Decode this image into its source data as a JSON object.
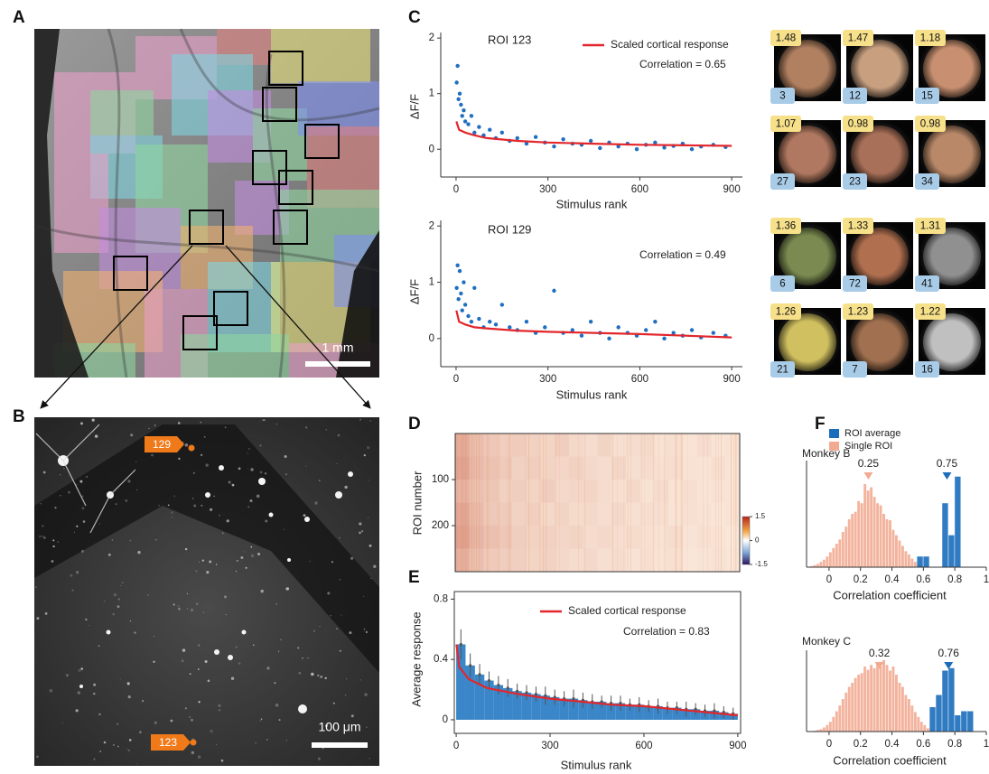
{
  "panel_labels": [
    "A",
    "B",
    "C",
    "D",
    "E",
    "F"
  ],
  "panel_a": {
    "scale_bar": "1 mm"
  },
  "panel_b": {
    "scale_bar": "100 μm",
    "roi_tags": [
      129,
      123
    ]
  },
  "face_grid": {
    "tiles": [
      {
        "response": 1.48,
        "rank": 3
      },
      {
        "response": 1.47,
        "rank": 12
      },
      {
        "response": 1.18,
        "rank": 15
      },
      {
        "response": 1.07,
        "rank": 27
      },
      {
        "response": 0.98,
        "rank": 23
      },
      {
        "response": 0.98,
        "rank": 34
      },
      {
        "response": 1.36,
        "rank": 6
      },
      {
        "response": 1.33,
        "rank": 72
      },
      {
        "response": 1.31,
        "rank": 41
      },
      {
        "response": 1.26,
        "rank": 21
      },
      {
        "response": 1.23,
        "rank": 7
      },
      {
        "response": 1.22,
        "rank": 16
      }
    ]
  },
  "chart_data": [
    {
      "type": "scatter",
      "annotation": "ROI 123",
      "correlation": "Correlation = 0.65",
      "xlabel": "Stimulus rank",
      "ylabel": "ΔF/F",
      "xlim": [
        -50,
        935
      ],
      "ylim": [
        -0.5,
        2.1
      ],
      "xticks": [
        0,
        300,
        600,
        900
      ],
      "yticks": [
        0,
        1,
        2
      ],
      "series": [
        {
          "style": "points",
          "color": "#1f6fc0",
          "x": [
            2,
            5,
            8,
            12,
            16,
            20,
            25,
            30,
            40,
            50,
            60,
            75,
            90,
            110,
            130,
            150,
            175,
            200,
            230,
            260,
            290,
            320,
            350,
            380,
            410,
            440,
            470,
            500,
            530,
            560,
            590,
            620,
            650,
            680,
            710,
            740,
            770,
            800,
            840,
            880
          ],
          "values": [
            1.2,
            1.5,
            0.9,
            1.0,
            0.8,
            0.6,
            0.7,
            0.5,
            0.45,
            0.6,
            0.3,
            0.4,
            0.25,
            0.35,
            0.2,
            0.3,
            0.15,
            0.2,
            0.1,
            0.22,
            0.12,
            0.05,
            0.18,
            0.1,
            0.08,
            0.15,
            0.02,
            0.12,
            0.05,
            0.1,
            0.0,
            0.08,
            0.12,
            0.03,
            0.06,
            0.1,
            0.0,
            0.05,
            0.08,
            0.04
          ]
        },
        {
          "name": "Scaled cortical response",
          "style": "line",
          "color": "#e3262b",
          "x": [
            1,
            10,
            30,
            60,
            100,
            200,
            300,
            450,
            600,
            750,
            900
          ],
          "values": [
            0.5,
            0.35,
            0.3,
            0.25,
            0.2,
            0.15,
            0.12,
            0.1,
            0.08,
            0.07,
            0.06
          ]
        }
      ]
    },
    {
      "type": "scatter",
      "annotation": "ROI 129",
      "correlation": "Correlation = 0.49",
      "xlabel": "Stimulus rank",
      "ylabel": "ΔF/F",
      "xlim": [
        -50,
        935
      ],
      "ylim": [
        -0.5,
        2.1
      ],
      "xticks": [
        0,
        300,
        600,
        900
      ],
      "yticks": [
        0,
        1,
        2
      ],
      "series": [
        {
          "style": "points",
          "color": "#1f6fc0",
          "x": [
            2,
            5,
            8,
            12,
            16,
            20,
            25,
            30,
            40,
            50,
            60,
            75,
            90,
            110,
            130,
            150,
            175,
            200,
            230,
            260,
            290,
            320,
            350,
            380,
            410,
            440,
            470,
            500,
            530,
            560,
            590,
            620,
            650,
            680,
            710,
            740,
            770,
            800,
            840,
            880
          ],
          "values": [
            0.9,
            1.3,
            0.7,
            1.2,
            0.8,
            0.5,
            1.0,
            0.6,
            0.4,
            0.3,
            0.9,
            0.35,
            0.2,
            0.3,
            0.25,
            0.6,
            0.2,
            0.15,
            0.3,
            0.1,
            0.2,
            0.85,
            0.1,
            0.15,
            0.05,
            0.3,
            0.1,
            0.0,
            0.2,
            0.1,
            0.05,
            0.15,
            0.3,
            0.0,
            0.1,
            0.05,
            0.15,
            0.02,
            0.1,
            0.05
          ]
        },
        {
          "style": "line",
          "color": "#e3262b",
          "x": [
            1,
            10,
            30,
            60,
            100,
            200,
            300,
            450,
            600,
            750,
            900
          ],
          "values": [
            0.5,
            0.3,
            0.25,
            0.2,
            0.18,
            0.14,
            0.12,
            0.1,
            0.08,
            0.05,
            0.02
          ]
        }
      ]
    },
    {
      "type": "heatmap",
      "ylabel": "ROI number",
      "xlim": [
        0,
        900
      ],
      "ylim": [
        0,
        300
      ],
      "y_inverted": true,
      "yticks": [
        100,
        200
      ],
      "zlim": [
        -1.5,
        1.5
      ],
      "colorbar_ticks": [
        1.5,
        0,
        -1.5
      ],
      "z": [
        [
          0.55,
          0.42,
          0.35,
          0.3,
          0.32,
          0.28,
          0.25,
          0.3,
          0.22,
          0.2,
          0.26,
          0.18,
          0.2,
          0.22,
          0.16,
          0.18,
          0.15,
          0.2,
          0.14,
          0.16
        ],
        [
          0.6,
          0.45,
          0.38,
          0.33,
          0.28,
          0.3,
          0.26,
          0.24,
          0.28,
          0.22,
          0.2,
          0.24,
          0.18,
          0.2,
          0.17,
          0.19,
          0.16,
          0.15,
          0.18,
          0.14
        ],
        [
          0.5,
          0.4,
          0.36,
          0.28,
          0.3,
          0.26,
          0.3,
          0.22,
          0.24,
          0.25,
          0.2,
          0.18,
          0.22,
          0.16,
          0.2,
          0.15,
          0.18,
          0.14,
          0.16,
          0.15
        ],
        [
          0.58,
          0.44,
          0.34,
          0.32,
          0.27,
          0.29,
          0.23,
          0.26,
          0.21,
          0.23,
          0.19,
          0.22,
          0.17,
          0.19,
          0.18,
          0.14,
          0.17,
          0.16,
          0.13,
          0.15
        ],
        [
          0.62,
          0.48,
          0.4,
          0.35,
          0.3,
          0.27,
          0.28,
          0.24,
          0.26,
          0.2,
          0.23,
          0.19,
          0.21,
          0.17,
          0.16,
          0.2,
          0.14,
          0.17,
          0.15,
          0.12
        ],
        [
          0.52,
          0.41,
          0.33,
          0.3,
          0.29,
          0.25,
          0.27,
          0.23,
          0.2,
          0.22,
          0.18,
          0.2,
          0.16,
          0.18,
          0.15,
          0.17,
          0.13,
          0.14,
          0.16,
          0.13
        ]
      ]
    },
    {
      "type": "bar",
      "correlation": "Correlation = 0.83",
      "xlabel": "Stimulus rank",
      "ylabel": "Average response",
      "xlim": [
        -6,
        909
      ],
      "ylim": [
        -0.09,
        0.85
      ],
      "xticks": [
        0,
        300,
        600,
        900
      ],
      "yticks": [
        0,
        0.4,
        0.8
      ],
      "series": [
        {
          "style": "bar",
          "color": "#3a86c8",
          "x": [
            15,
            45,
            75,
            105,
            135,
            165,
            195,
            225,
            255,
            285,
            315,
            345,
            375,
            405,
            435,
            465,
            495,
            525,
            555,
            585,
            615,
            645,
            675,
            705,
            735,
            765,
            795,
            825,
            855,
            885
          ],
          "values": [
            0.5,
            0.36,
            0.3,
            0.26,
            0.23,
            0.21,
            0.19,
            0.18,
            0.17,
            0.16,
            0.15,
            0.14,
            0.14,
            0.13,
            0.12,
            0.12,
            0.11,
            0.11,
            0.1,
            0.1,
            0.09,
            0.09,
            0.08,
            0.08,
            0.07,
            0.07,
            0.06,
            0.06,
            0.05,
            0.04
          ],
          "errors": [
            0.1,
            0.08,
            0.07,
            0.06,
            0.06,
            0.06,
            0.05,
            0.05,
            0.05,
            0.06,
            0.05,
            0.05,
            0.06,
            0.05,
            0.05,
            0.04,
            0.05,
            0.05,
            0.04,
            0.05,
            0.04,
            0.05,
            0.04,
            0.04,
            0.05,
            0.04,
            0.04,
            0.05,
            0.04,
            0.04
          ]
        },
        {
          "name": "Scaled cortical response",
          "style": "line",
          "color": "#e3262b",
          "x": [
            1,
            10,
            40,
            100,
            200,
            300,
            400,
            500,
            600,
            700,
            800,
            900
          ],
          "values": [
            0.5,
            0.35,
            0.27,
            0.21,
            0.17,
            0.14,
            0.12,
            0.1,
            0.09,
            0.07,
            0.05,
            0.03
          ]
        }
      ]
    },
    {
      "type": "histogram",
      "title": "Monkey B",
      "xlabel": "Correlation coefficient",
      "xlim": [
        -0.143,
        1
      ],
      "ylim": [
        0,
        1
      ],
      "xticks": [
        0,
        0.2,
        0.4,
        0.6,
        0.8,
        1
      ],
      "series": [
        {
          "name": "ROI average",
          "color": "#1a6dbb",
          "median": 0.75,
          "bins": [
            0.56,
            0.6,
            0.64,
            0.68,
            0.72,
            0.76,
            0.8,
            0.84
          ],
          "values": [
            0.1,
            0.1,
            0,
            0,
            0.6,
            0.3,
            0.85
          ]
        },
        {
          "name": "Single ROI",
          "color": "#f2ab92",
          "median": 0.25,
          "bins": [
            -0.12,
            -0.1,
            -0.08,
            -0.06,
            -0.04,
            -0.02,
            0,
            0.02,
            0.04,
            0.06,
            0.08,
            0.1,
            0.12,
            0.14,
            0.16,
            0.18,
            0.2,
            0.22,
            0.24,
            0.26,
            0.28,
            0.3,
            0.32,
            0.34,
            0.36,
            0.38,
            0.4,
            0.42,
            0.44,
            0.46,
            0.48,
            0.5,
            0.52,
            0.54,
            0.56,
            0.58,
            0.6
          ],
          "values": [
            0.01,
            0.02,
            0.03,
            0.05,
            0.07,
            0.1,
            0.14,
            0.18,
            0.22,
            0.26,
            0.33,
            0.38,
            0.45,
            0.5,
            0.52,
            0.62,
            0.6,
            0.78,
            0.72,
            0.75,
            0.66,
            0.6,
            0.58,
            0.5,
            0.45,
            0.44,
            0.35,
            0.3,
            0.25,
            0.2,
            0.15,
            0.12,
            0.08,
            0.05,
            0.03,
            0.02
          ]
        }
      ]
    },
    {
      "type": "histogram",
      "title": "Monkey C",
      "xlabel": "Correlation coefficient",
      "xlim": [
        -0.143,
        1
      ],
      "ylim": [
        0,
        1
      ],
      "xticks": [
        0,
        0.2,
        0.4,
        0.6,
        0.8,
        1
      ],
      "series": [
        {
          "color": "#1a6dbb",
          "median": 0.76,
          "bins": [
            0.64,
            0.68,
            0.72,
            0.76,
            0.8,
            0.84,
            0.88,
            0.92
          ],
          "values": [
            0.3,
            0.45,
            0.75,
            0.78,
            0.2,
            0.25,
            0.25
          ]
        },
        {
          "color": "#f2ab92",
          "median": 0.32,
          "bins": [
            -0.1,
            -0.08,
            -0.06,
            -0.04,
            -0.02,
            0,
            0.02,
            0.04,
            0.06,
            0.08,
            0.1,
            0.12,
            0.14,
            0.16,
            0.18,
            0.2,
            0.22,
            0.24,
            0.26,
            0.28,
            0.3,
            0.32,
            0.34,
            0.36,
            0.38,
            0.4,
            0.42,
            0.44,
            0.46,
            0.48,
            0.5,
            0.52,
            0.54,
            0.56,
            0.58,
            0.6,
            0.62,
            0.64,
            0.66
          ],
          "values": [
            0.01,
            0.02,
            0.03,
            0.05,
            0.08,
            0.12,
            0.18,
            0.25,
            0.32,
            0.4,
            0.48,
            0.55,
            0.6,
            0.66,
            0.7,
            0.72,
            0.8,
            0.76,
            0.82,
            0.78,
            0.85,
            0.8,
            0.88,
            0.82,
            0.75,
            0.8,
            0.7,
            0.6,
            0.55,
            0.45,
            0.4,
            0.32,
            0.24,
            0.18,
            0.12,
            0.08,
            0.04,
            0.02
          ]
        }
      ]
    }
  ]
}
